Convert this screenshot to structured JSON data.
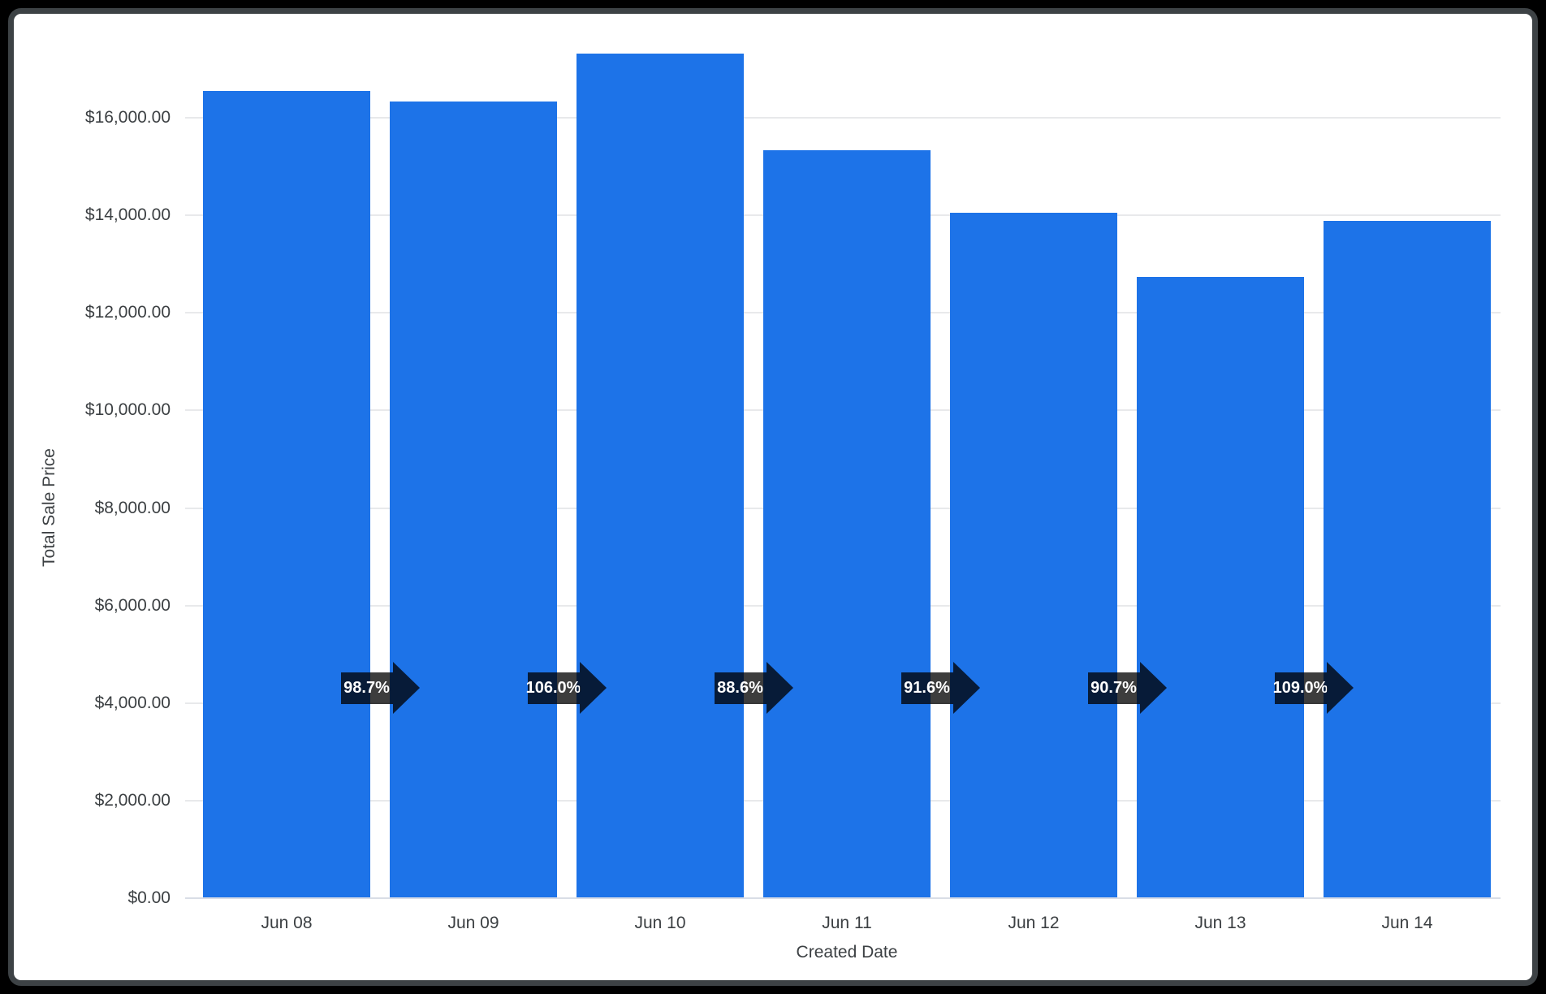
{
  "window": {
    "background_color": "#000000",
    "frame_border_color": "#3d4245",
    "card_background": "#ffffff"
  },
  "chart_data": {
    "type": "bar",
    "title": "",
    "xlabel": "Created Date",
    "ylabel": "Total Sale Price",
    "categories": [
      "Jun 08",
      "Jun 09",
      "Jun 10",
      "Jun 11",
      "Jun 12",
      "Jun 13",
      "Jun 14"
    ],
    "values": [
      16550,
      16330,
      17310,
      15340,
      14050,
      12740,
      13890
    ],
    "y_ticks": [
      "$0.00",
      "$2,000.00",
      "$4,000.00",
      "$6,000.00",
      "$8,000.00",
      "$10,000.00",
      "$12,000.00",
      "$14,000.00",
      "$16,000.00"
    ],
    "ytick_step": 2000,
    "ylim": [
      0,
      17400
    ],
    "grid": true,
    "legend": "none",
    "bar_color": "#1d73e8",
    "axis_label_color": "#3c4043",
    "gridline_color": "#e8e9eb",
    "baseline_color": "#d9dde6",
    "growth_arrows": {
      "labels": [
        "98.7%",
        "106.0%",
        "88.6%",
        "91.6%",
        "90.7%",
        "109.0%"
      ],
      "badge_color": "rgba(0,0,0,0.76)",
      "text_color": "#ffffff"
    }
  }
}
